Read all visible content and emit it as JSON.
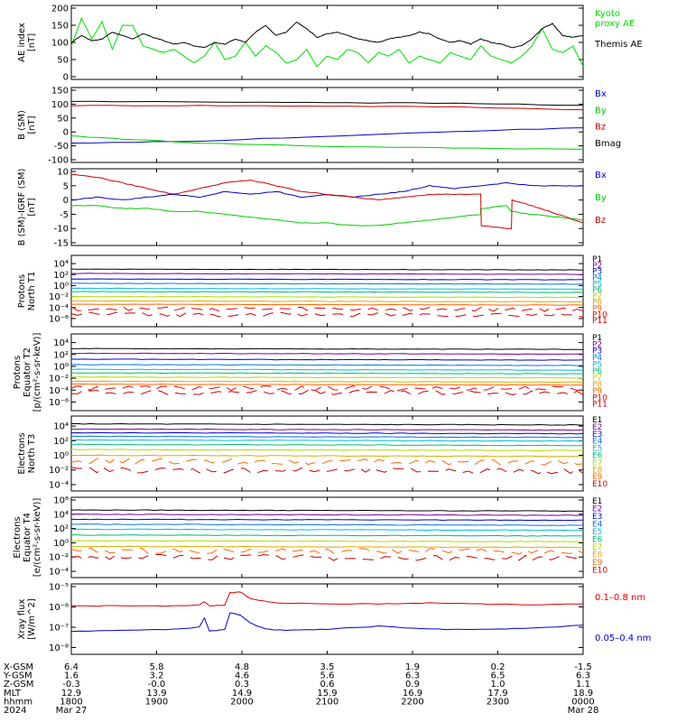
{
  "chart_data": [
    {
      "type": "line",
      "ylabel": "AE index\n[nT]",
      "ylim": [
        0,
        200
      ],
      "yticks": [
        "200",
        "150",
        "100",
        "50",
        "0"
      ],
      "series": [
        {
          "name": "Kyoto\nproxy AE",
          "color": "#00dd00",
          "x": [
            0,
            0.02,
            0.04,
            0.06,
            0.08,
            0.1,
            0.12,
            0.14,
            0.16,
            0.18,
            0.2,
            0.22,
            0.24,
            0.26,
            0.28,
            0.3,
            0.32,
            0.34,
            0.36,
            0.38,
            0.4,
            0.42,
            0.44,
            0.46,
            0.48,
            0.5,
            0.52,
            0.54,
            0.56,
            0.58,
            0.6,
            0.62,
            0.64,
            0.66,
            0.68,
            0.7,
            0.72,
            0.74,
            0.76,
            0.78,
            0.8,
            0.82,
            0.84,
            0.86,
            0.88,
            0.9,
            0.92,
            0.94,
            0.96,
            0.98,
            1.0
          ],
          "y": [
            90,
            170,
            110,
            160,
            80,
            150,
            150,
            90,
            80,
            70,
            80,
            60,
            40,
            60,
            100,
            50,
            60,
            100,
            60,
            90,
            70,
            40,
            50,
            80,
            30,
            60,
            50,
            80,
            70,
            40,
            70,
            60,
            80,
            40,
            60,
            50,
            40,
            70,
            60,
            50,
            90,
            60,
            50,
            40,
            60,
            90,
            140,
            80,
            70,
            90,
            30
          ]
        },
        {
          "name": "Themis AE",
          "color": "#000000",
          "x": [
            0,
            0.02,
            0.04,
            0.06,
            0.08,
            0.1,
            0.12,
            0.14,
            0.16,
            0.18,
            0.2,
            0.22,
            0.24,
            0.26,
            0.28,
            0.3,
            0.32,
            0.34,
            0.36,
            0.38,
            0.4,
            0.42,
            0.44,
            0.46,
            0.48,
            0.5,
            0.52,
            0.54,
            0.56,
            0.58,
            0.6,
            0.62,
            0.64,
            0.66,
            0.68,
            0.7,
            0.72,
            0.74,
            0.76,
            0.78,
            0.8,
            0.82,
            0.84,
            0.86,
            0.88,
            0.9,
            0.92,
            0.94,
            0.96,
            0.98,
            1.0
          ],
          "y": [
            100,
            120,
            105,
            110,
            130,
            120,
            110,
            125,
            115,
            105,
            95,
            100,
            90,
            85,
            100,
            95,
            110,
            100,
            130,
            150,
            120,
            130,
            160,
            140,
            115,
            125,
            130,
            120,
            110,
            105,
            100,
            110,
            115,
            120,
            130,
            125,
            110,
            100,
            105,
            95,
            110,
            100,
            95,
            85,
            90,
            110,
            140,
            155,
            120,
            115,
            120
          ]
        }
      ]
    },
    {
      "type": "line",
      "ylabel": "B (SM)\n[nT]",
      "ylim": [
        -100,
        150
      ],
      "yticks": [
        "150",
        "100",
        "50",
        "0",
        "-50",
        "-100"
      ],
      "series": [
        {
          "name": "Bx",
          "color": "#0000cc",
          "x": [
            0,
            0.25,
            0.5,
            0.75,
            1.0
          ],
          "y": [
            -40,
            -33,
            -15,
            2,
            15
          ]
        },
        {
          "name": "By",
          "color": "#00cc00",
          "x": [
            0,
            0.1,
            0.25,
            0.5,
            0.75,
            1.0
          ],
          "y": [
            -15,
            -25,
            -40,
            -52,
            -58,
            -62
          ]
        },
        {
          "name": "Bz",
          "color": "#cc0000",
          "x": [
            0,
            0.25,
            0.5,
            0.75,
            1.0
          ],
          "y": [
            95,
            95,
            93,
            90,
            80
          ]
        },
        {
          "name": "Bmag",
          "color": "#000000",
          "x": [
            0,
            0.25,
            0.5,
            0.75,
            1.0
          ],
          "y": [
            110,
            108,
            106,
            103,
            96
          ]
        }
      ]
    },
    {
      "type": "line",
      "ylabel": "B (SM)-IGRF (SM)\n[nT]",
      "ylim": [
        -15,
        10
      ],
      "yticks": [
        "10",
        "5",
        "0",
        "-5",
        "-10",
        "-15"
      ],
      "series": [
        {
          "name": "Bx",
          "color": "#0000cc",
          "x": [
            0,
            0.05,
            0.1,
            0.15,
            0.2,
            0.25,
            0.3,
            0.35,
            0.4,
            0.45,
            0.5,
            0.55,
            0.6,
            0.65,
            0.7,
            0.75,
            0.8,
            0.85,
            0.9,
            0.95,
            1.0
          ],
          "y": [
            0,
            1,
            0,
            1,
            2,
            1,
            3,
            2,
            3,
            1,
            2,
            1,
            2,
            3,
            5,
            4,
            5,
            6,
            5,
            5,
            5
          ]
        },
        {
          "name": "By",
          "color": "#00cc00",
          "x": [
            0,
            0.05,
            0.1,
            0.15,
            0.2,
            0.25,
            0.3,
            0.35,
            0.4,
            0.45,
            0.5,
            0.55,
            0.6,
            0.65,
            0.7,
            0.75,
            0.8,
            0.8,
            0.85,
            0.86,
            0.9,
            0.95,
            1.0
          ],
          "y": [
            -2,
            -2,
            -3,
            -3,
            -4,
            -4,
            -5,
            -6,
            -7,
            -8,
            -8,
            -9,
            -9,
            -8,
            -7,
            -6,
            -5,
            -3,
            -2,
            -4,
            -5,
            -6,
            -7
          ]
        },
        {
          "name": "Bz",
          "color": "#cc0000",
          "x": [
            0,
            0.05,
            0.1,
            0.15,
            0.2,
            0.25,
            0.3,
            0.35,
            0.4,
            0.45,
            0.5,
            0.55,
            0.6,
            0.65,
            0.7,
            0.75,
            0.8,
            0.801,
            0.85,
            0.86,
            0.861,
            0.9,
            0.95,
            1.0
          ],
          "y": [
            9,
            8,
            6,
            4,
            2,
            4,
            6,
            7,
            5,
            3,
            2,
            1,
            0,
            1,
            2,
            2,
            2,
            -9,
            -10,
            -10,
            0,
            -2,
            -5,
            -8
          ]
        }
      ]
    },
    {
      "type": "line",
      "ylabel": "Protons\nNorth T1",
      "log": true,
      "yticks": [
        "10⁴",
        "10²",
        "10⁰",
        "10⁻²",
        "10⁻⁴",
        "10⁻⁶"
      ],
      "ylim_log": [
        -7,
        5
      ],
      "channels": [
        {
          "name": "P1",
          "color": "#000000",
          "level": 3.0
        },
        {
          "name": "P2",
          "color": "#7a0099",
          "level": 2.2
        },
        {
          "name": "P3",
          "color": "#0000cc",
          "level": 1.2
        },
        {
          "name": "P4",
          "color": "#0077dd",
          "level": 0.4
        },
        {
          "name": "P5",
          "color": "#00bbdd",
          "level": -0.5
        },
        {
          "name": "P6",
          "color": "#00bb77",
          "level": -1.1
        },
        {
          "name": "P7",
          "color": "#aadd00",
          "level": -2.0
        },
        {
          "name": "P8",
          "color": "#ddaa00",
          "level": -2.8
        },
        {
          "name": "P9",
          "color": "#ff6600",
          "level": -3.4
        },
        {
          "name": "P10",
          "color": "#ee0000",
          "level": -4.2
        },
        {
          "name": "P11",
          "color": "#cc0000",
          "level": -5.2
        }
      ]
    },
    {
      "type": "line",
      "ylabel": "Protons\nEquator T2\n[p/(cm²-s-sr-keV)]",
      "log": true,
      "yticks": [
        "10⁴",
        "10²",
        "10⁰",
        "10⁻²",
        "10⁻⁴",
        "10⁻⁶"
      ],
      "ylim_log": [
        -7,
        5
      ],
      "channels": [
        {
          "name": "P1",
          "color": "#000000",
          "level": 3.0
        },
        {
          "name": "P2",
          "color": "#7a0099",
          "level": 2.2
        },
        {
          "name": "P3",
          "color": "#0000cc",
          "level": 1.2
        },
        {
          "name": "P4",
          "color": "#0077dd",
          "level": 0.3
        },
        {
          "name": "P5",
          "color": "#00bbdd",
          "level": -0.5
        },
        {
          "name": "P6",
          "color": "#00bb77",
          "level": -1.1
        },
        {
          "name": "P7",
          "color": "#aadd00",
          "level": -1.8
        },
        {
          "name": "P8",
          "color": "#ddaa00",
          "level": -2.5
        },
        {
          "name": "P9",
          "color": "#ff6600",
          "level": -3.0
        },
        {
          "name": "P10",
          "color": "#ee0000",
          "level": -3.6
        },
        {
          "name": "P11",
          "color": "#cc0000",
          "level": -4.3
        }
      ]
    },
    {
      "type": "line",
      "ylabel": "Electrons\nNorth T3",
      "log": true,
      "yticks": [
        "10⁴",
        "10²",
        "10⁰",
        "10⁻²",
        "10⁻⁴"
      ],
      "ylim_log": [
        -4.5,
        5
      ],
      "channels": [
        {
          "name": "E1",
          "color": "#000000",
          "level": 4.3
        },
        {
          "name": "E2",
          "color": "#7a0099",
          "level": 3.6
        },
        {
          "name": "E3",
          "color": "#0000cc",
          "level": 3.1
        },
        {
          "name": "E4",
          "color": "#0077dd",
          "level": 2.6
        },
        {
          "name": "E5",
          "color": "#00bbdd",
          "level": 2.1
        },
        {
          "name": "E6",
          "color": "#00bb77",
          "level": 1.5
        },
        {
          "name": "E7",
          "color": "#aadd00",
          "level": 0.8
        },
        {
          "name": "E8",
          "color": "#ddaa00",
          "level": 0.0
        },
        {
          "name": "E9",
          "color": "#ff6600",
          "level": -0.8
        },
        {
          "name": "E10",
          "color": "#cc0000",
          "level": -2.0
        }
      ]
    },
    {
      "type": "line",
      "ylabel": "Electrons\nEquator T4\n[e/(cm²-s-sr-keV)]",
      "log": true,
      "yticks": [
        "10⁶",
        "10⁴",
        "10²",
        "10⁰",
        "10⁻²",
        "10⁻⁴"
      ],
      "ylim_log": [
        -4.5,
        6
      ],
      "channels": [
        {
          "name": "E1",
          "color": "#000000",
          "level": 4.6
        },
        {
          "name": "E2",
          "color": "#7a0099",
          "level": 4.0
        },
        {
          "name": "E3",
          "color": "#0000cc",
          "level": 3.3
        },
        {
          "name": "E4",
          "color": "#0077dd",
          "level": 2.6
        },
        {
          "name": "E5",
          "color": "#00bbdd",
          "level": 1.9
        },
        {
          "name": "E6",
          "color": "#00bb77",
          "level": 1.1
        },
        {
          "name": "E7",
          "color": "#aadd00",
          "level": 0.3
        },
        {
          "name": "E8",
          "color": "#ddaa00",
          "level": -0.5
        },
        {
          "name": "E9",
          "color": "#ff6600",
          "level": -1.1
        },
        {
          "name": "E10",
          "color": "#cc0000",
          "level": -2.0
        }
      ]
    },
    {
      "type": "line",
      "ylabel": "Xray flux\n[W/m^2]",
      "log": true,
      "yticks": [
        "10⁻⁵",
        "10⁻⁶",
        "10⁻⁷",
        "10⁻⁸"
      ],
      "ylim_log": [
        -8.2,
        -5
      ],
      "series": [
        {
          "name": "0.1–0.8 nm",
          "color": "#dd0000",
          "x": [
            0,
            0.1,
            0.2,
            0.25,
            0.26,
            0.27,
            0.3,
            0.31,
            0.33,
            0.35,
            0.4,
            0.5,
            0.6,
            0.7,
            0.8,
            0.9,
            1.0
          ],
          "y": [
            -5.95,
            -5.95,
            -5.95,
            -5.9,
            -5.75,
            -5.95,
            -5.9,
            -5.3,
            -5.25,
            -5.6,
            -5.8,
            -5.85,
            -5.85,
            -5.8,
            -5.85,
            -5.9,
            -5.85
          ]
        },
        {
          "name": "0.05–0.4 nm",
          "color": "#0000cc",
          "x": [
            0,
            0.1,
            0.2,
            0.25,
            0.26,
            0.27,
            0.3,
            0.31,
            0.33,
            0.35,
            0.38,
            0.42,
            0.5,
            0.6,
            0.7,
            0.8,
            0.9,
            1.0
          ],
          "y": [
            -7.2,
            -7.15,
            -7.1,
            -7.0,
            -6.55,
            -7.2,
            -7.1,
            -6.3,
            -6.4,
            -6.8,
            -7.1,
            -7.15,
            -7.1,
            -6.95,
            -7.1,
            -7.1,
            -7.05,
            -6.9
          ]
        }
      ]
    }
  ],
  "xaxis": {
    "rows": [
      {
        "label": "X-GSM",
        "values": [
          "6.4",
          "5.8",
          "4.8",
          "3.5",
          "1.9",
          "0.2",
          "-1.5"
        ]
      },
      {
        "label": "Y-GSM",
        "values": [
          "1.6",
          "3.2",
          "4.6",
          "5.6",
          "6.3",
          "6.5",
          "6.3"
        ]
      },
      {
        "label": "Z-GSM",
        "values": [
          "-0.3",
          "-0.0",
          "0.3",
          "0.6",
          "0.9",
          "1.0",
          "1.1"
        ]
      },
      {
        "label": "MLT",
        "values": [
          "12.9",
          "13.9",
          "14.9",
          "15.9",
          "16.9",
          "17.9",
          "18.9"
        ]
      },
      {
        "label": "hhmm",
        "values": [
          "1800",
          "1900",
          "2000",
          "2100",
          "2200",
          "2300",
          "0000"
        ]
      },
      {
        "label": "2024",
        "values": [
          "Mar 27",
          "",
          "",
          "",
          "",
          "",
          "Mar 28"
        ]
      }
    ]
  }
}
